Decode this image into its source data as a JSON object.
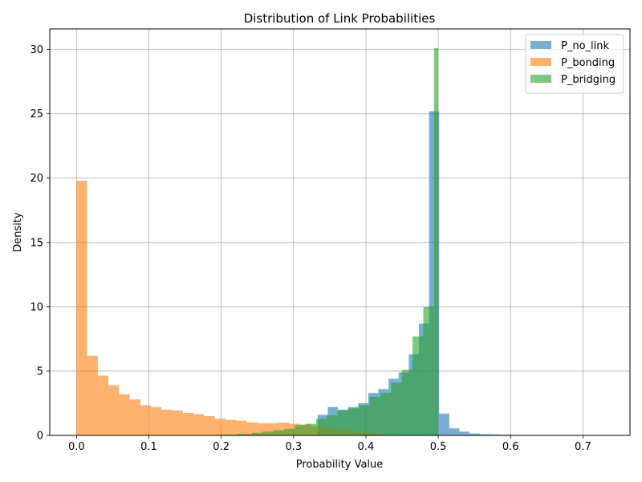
{
  "chart_data": {
    "type": "bar",
    "title": "Distribution of Link Probabilities",
    "xlabel": "Probability Value",
    "ylabel": "Density",
    "xlim": [
      -0.037,
      0.765
    ],
    "ylim": [
      0,
      31.6
    ],
    "xticks": [
      0.0,
      0.1,
      0.2,
      0.3,
      0.4,
      0.5,
      0.6,
      0.7
    ],
    "xtick_labels": [
      "0.0",
      "0.1",
      "0.2",
      "0.3",
      "0.4",
      "0.5",
      "0.6",
      "0.7"
    ],
    "yticks": [
      0,
      5,
      10,
      15,
      20,
      25,
      30
    ],
    "ytick_labels": [
      "0",
      "5",
      "10",
      "15",
      "20",
      "25",
      "30"
    ],
    "grid": true,
    "legend_position": "top-right",
    "series": [
      {
        "name": "P_no_link",
        "color": "#1f77b4",
        "opacity": 0.6,
        "bins": [
          [
            0.18,
            0.3333,
            0.0
          ],
          [
            0.3333,
            0.3473,
            1.6
          ],
          [
            0.3473,
            0.3613,
            2.2
          ],
          [
            0.3613,
            0.3753,
            2.0
          ],
          [
            0.3753,
            0.3893,
            2.2
          ],
          [
            0.3893,
            0.4033,
            2.5
          ],
          [
            0.4033,
            0.4173,
            3.3
          ],
          [
            0.4173,
            0.4313,
            3.6
          ],
          [
            0.4313,
            0.4453,
            4.4
          ],
          [
            0.4453,
            0.4593,
            4.9
          ],
          [
            0.4593,
            0.4733,
            6.3
          ],
          [
            0.4733,
            0.4873,
            8.7
          ],
          [
            0.4873,
            0.5013,
            25.2
          ],
          [
            0.5013,
            0.5153,
            1.7
          ],
          [
            0.5153,
            0.5293,
            0.55
          ],
          [
            0.5293,
            0.5433,
            0.3
          ],
          [
            0.5433,
            0.5573,
            0.15
          ],
          [
            0.5573,
            0.5713,
            0.1
          ],
          [
            0.5713,
            0.5853,
            0.08
          ],
          [
            0.5853,
            0.5993,
            0.06
          ],
          [
            0.5993,
            0.6133,
            0.04
          ],
          [
            0.6133,
            0.6273,
            0.03
          ],
          [
            0.6273,
            0.6413,
            0.02
          ],
          [
            0.6413,
            0.6553,
            0.01
          ],
          [
            0.6553,
            0.6693,
            0.01
          ]
        ]
      },
      {
        "name": "P_bonding",
        "color": "#ff7f0e",
        "opacity": 0.6,
        "bins": [
          [
            0.0,
            0.0147,
            19.8
          ],
          [
            0.0147,
            0.0294,
            6.2
          ],
          [
            0.0294,
            0.0441,
            4.65
          ],
          [
            0.0441,
            0.0588,
            3.9
          ],
          [
            0.0588,
            0.0735,
            3.2
          ],
          [
            0.0735,
            0.0882,
            2.8
          ],
          [
            0.0882,
            0.1029,
            2.35
          ],
          [
            0.1029,
            0.1176,
            2.2
          ],
          [
            0.1176,
            0.1323,
            2.0
          ],
          [
            0.1323,
            0.147,
            1.95
          ],
          [
            0.147,
            0.1617,
            1.75
          ],
          [
            0.1617,
            0.1764,
            1.65
          ],
          [
            0.1764,
            0.1911,
            1.5
          ],
          [
            0.1911,
            0.2058,
            1.3
          ],
          [
            0.2058,
            0.2205,
            1.2
          ],
          [
            0.2205,
            0.2352,
            1.15
          ],
          [
            0.2352,
            0.2499,
            1.0
          ],
          [
            0.2499,
            0.2646,
            0.95
          ],
          [
            0.2646,
            0.2793,
            0.95
          ],
          [
            0.2793,
            0.294,
            1.0
          ],
          [
            0.294,
            0.3087,
            0.9
          ],
          [
            0.3087,
            0.3234,
            0.85
          ],
          [
            0.3234,
            0.3381,
            0.7
          ],
          [
            0.3381,
            0.3528,
            0.6
          ],
          [
            0.3528,
            0.3675,
            0.5
          ],
          [
            0.3675,
            0.3822,
            0.4
          ],
          [
            0.3822,
            0.3969,
            0.3
          ],
          [
            0.3969,
            0.4116,
            0.2
          ],
          [
            0.4116,
            0.4263,
            0.12
          ],
          [
            0.4263,
            0.441,
            0.06
          ],
          [
            0.441,
            0.4557,
            0.03
          ],
          [
            0.4557,
            0.4704,
            0.02
          ]
        ]
      },
      {
        "name": "P_bridging",
        "color": "#2ca02c",
        "opacity": 0.6,
        "bins": [
          [
            0.18,
            0.2008,
            0.02
          ],
          [
            0.2008,
            0.2216,
            0.06
          ],
          [
            0.2216,
            0.2425,
            0.12
          ],
          [
            0.2425,
            0.2573,
            0.2
          ],
          [
            0.2573,
            0.2721,
            0.3
          ],
          [
            0.2721,
            0.2869,
            0.4
          ],
          [
            0.2869,
            0.3017,
            0.5
          ],
          [
            0.3017,
            0.3165,
            0.8
          ],
          [
            0.3165,
            0.3313,
            0.9
          ],
          [
            0.3313,
            0.3461,
            1.3
          ],
          [
            0.3461,
            0.3609,
            1.55
          ],
          [
            0.3609,
            0.3757,
            1.95
          ],
          [
            0.3757,
            0.3905,
            2.1
          ],
          [
            0.3905,
            0.4053,
            2.35
          ],
          [
            0.4053,
            0.4201,
            3.0
          ],
          [
            0.4201,
            0.4349,
            3.3
          ],
          [
            0.4349,
            0.4497,
            4.1
          ],
          [
            0.4497,
            0.4645,
            5.1
          ],
          [
            0.4645,
            0.4793,
            7.7
          ],
          [
            0.4793,
            0.4941,
            10.0
          ],
          [
            0.4941,
            0.5,
            30.1
          ]
        ]
      }
    ]
  }
}
